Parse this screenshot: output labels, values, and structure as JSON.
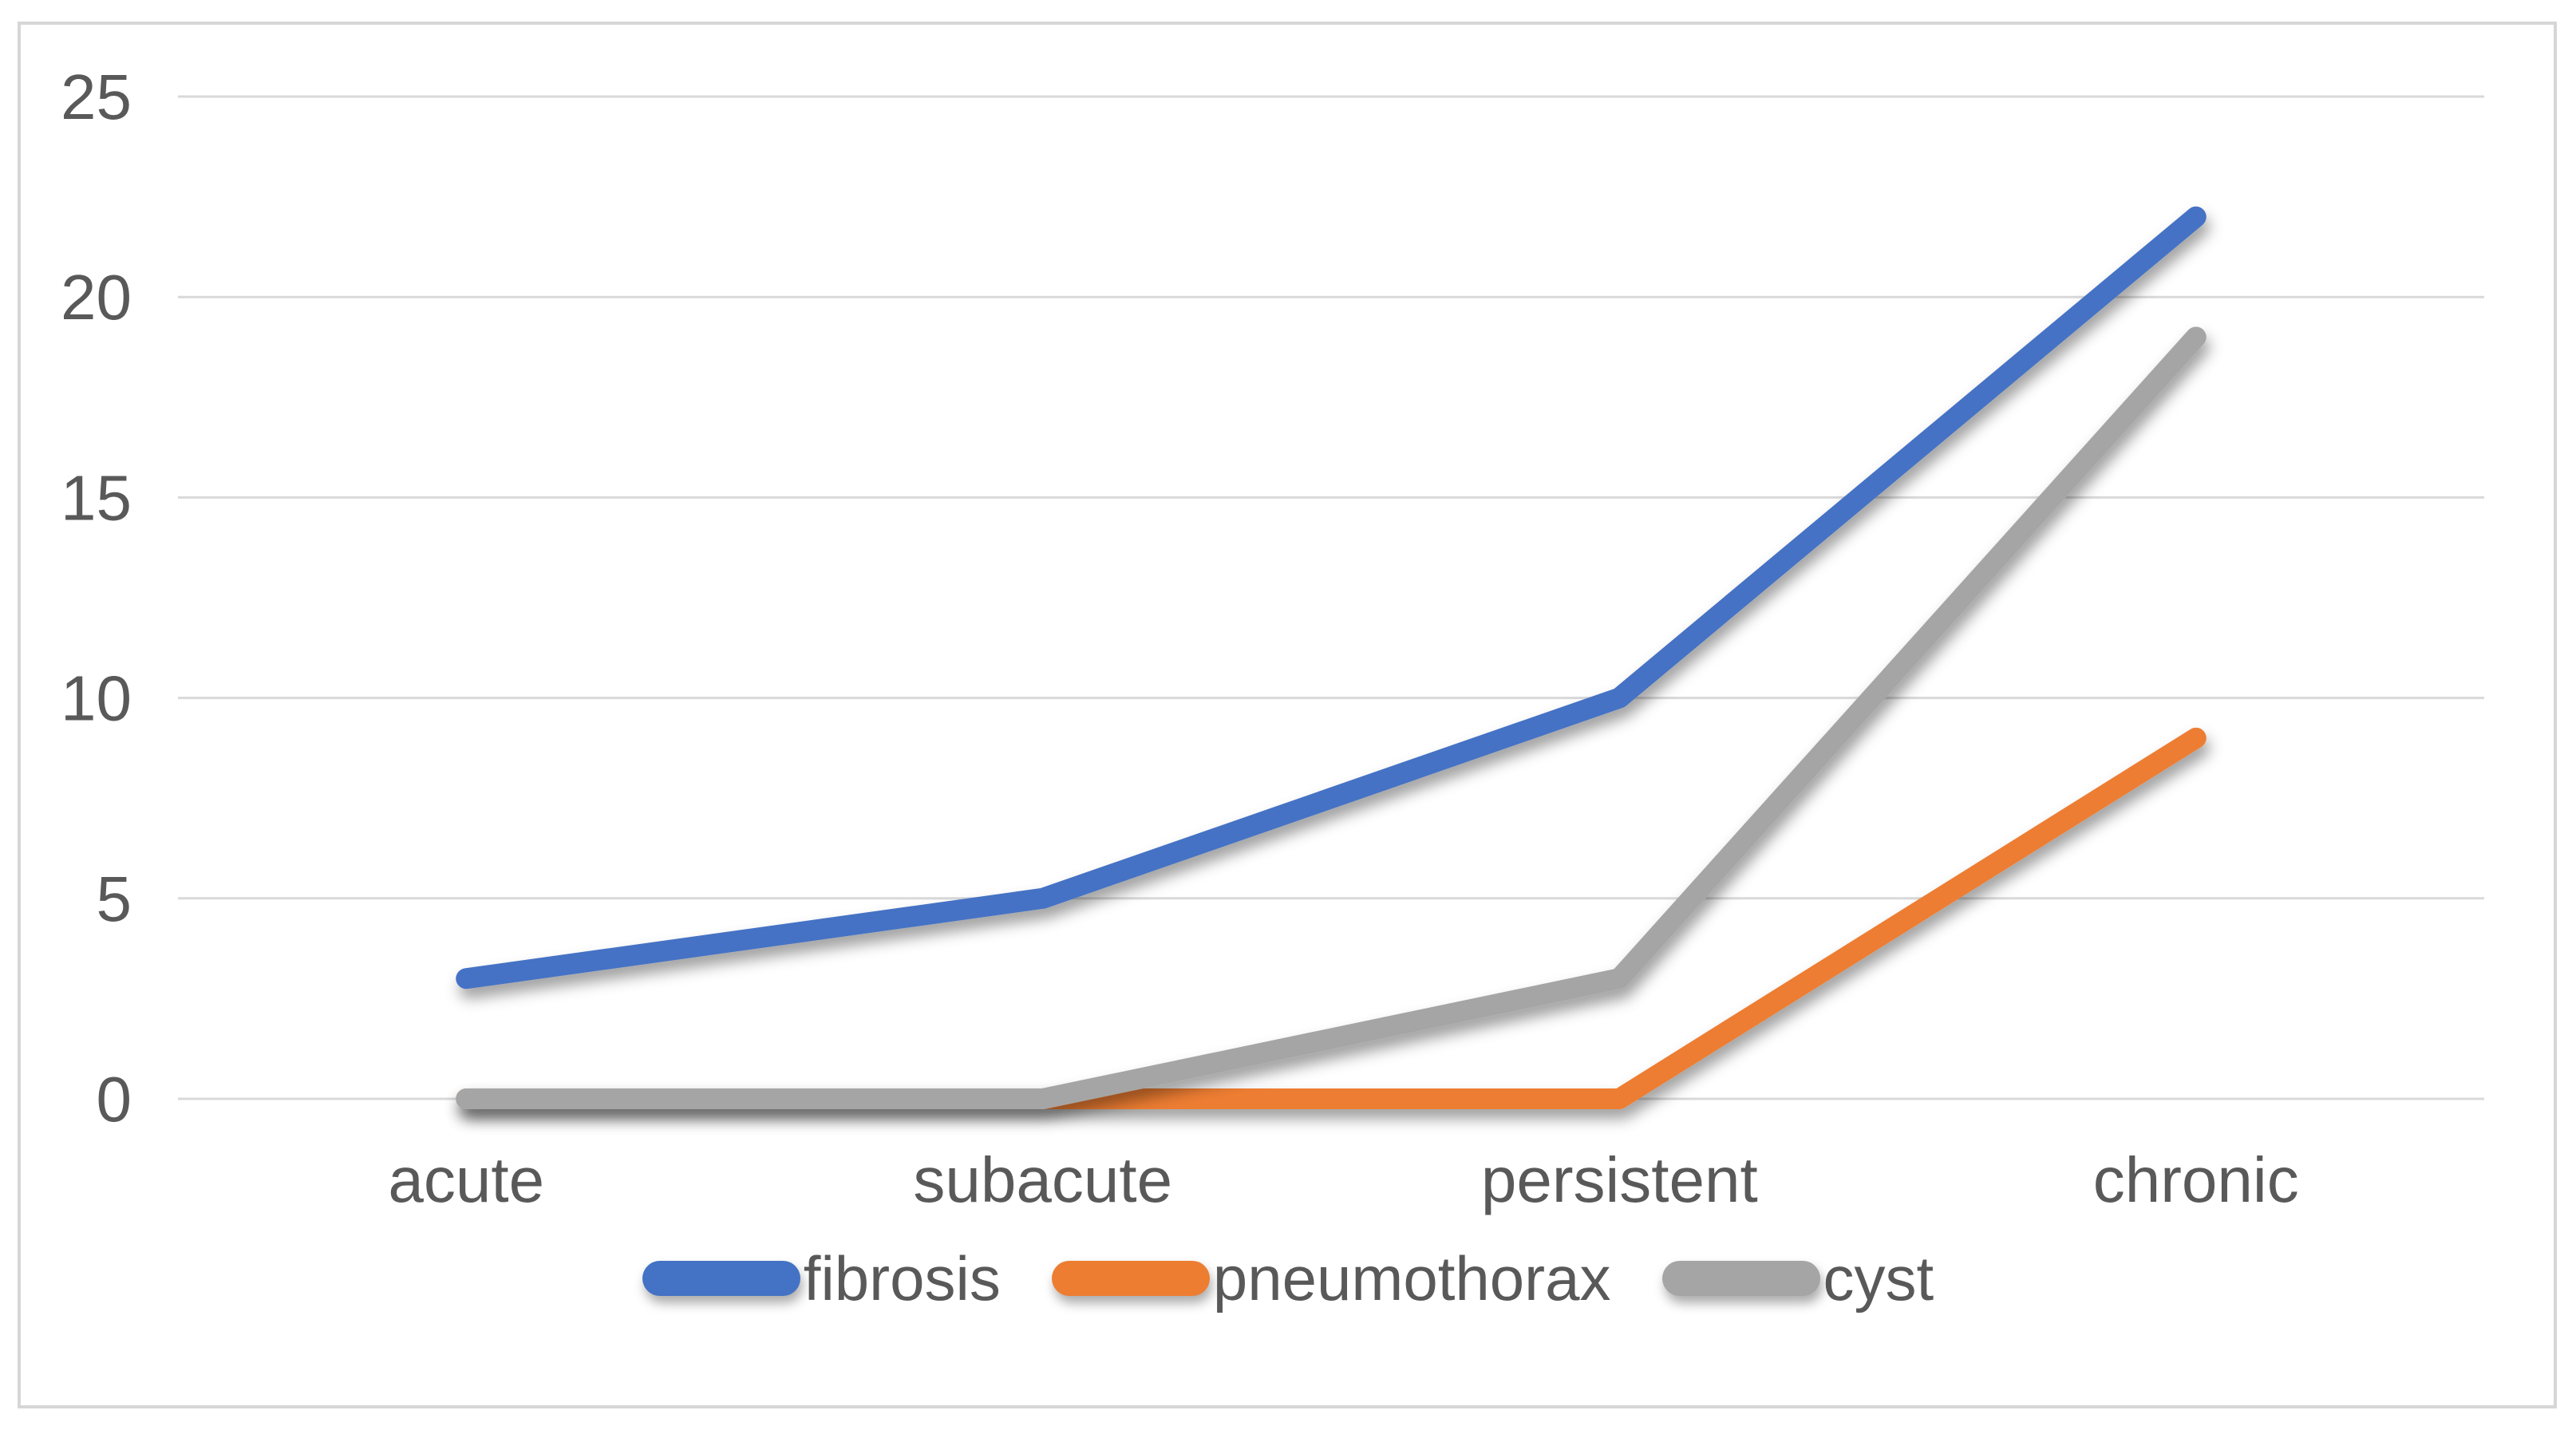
{
  "chart_data": {
    "type": "line",
    "title": "",
    "xlabel": "",
    "ylabel": "",
    "categories": [
      "acute",
      "subacute",
      "persistent",
      "chronic"
    ],
    "series": [
      {
        "name": "fibrosis",
        "color": "#4472C4",
        "values": [
          3,
          5,
          10,
          22
        ]
      },
      {
        "name": "pneumothorax",
        "color": "#ED7D31",
        "values": [
          0,
          0,
          0,
          9
        ]
      },
      {
        "name": "cyst",
        "color": "#A5A5A5",
        "values": [
          0,
          0,
          3,
          19
        ]
      }
    ],
    "ylim": [
      0,
      25
    ],
    "yticks": [
      0,
      5,
      10,
      15,
      20,
      25
    ],
    "grid": true,
    "legend_position": "bottom-center"
  },
  "colors": {
    "text": "#595959",
    "gridline": "#D9D9D9",
    "frame_border": "#D6D6D6",
    "background": "#FFFFFF"
  }
}
